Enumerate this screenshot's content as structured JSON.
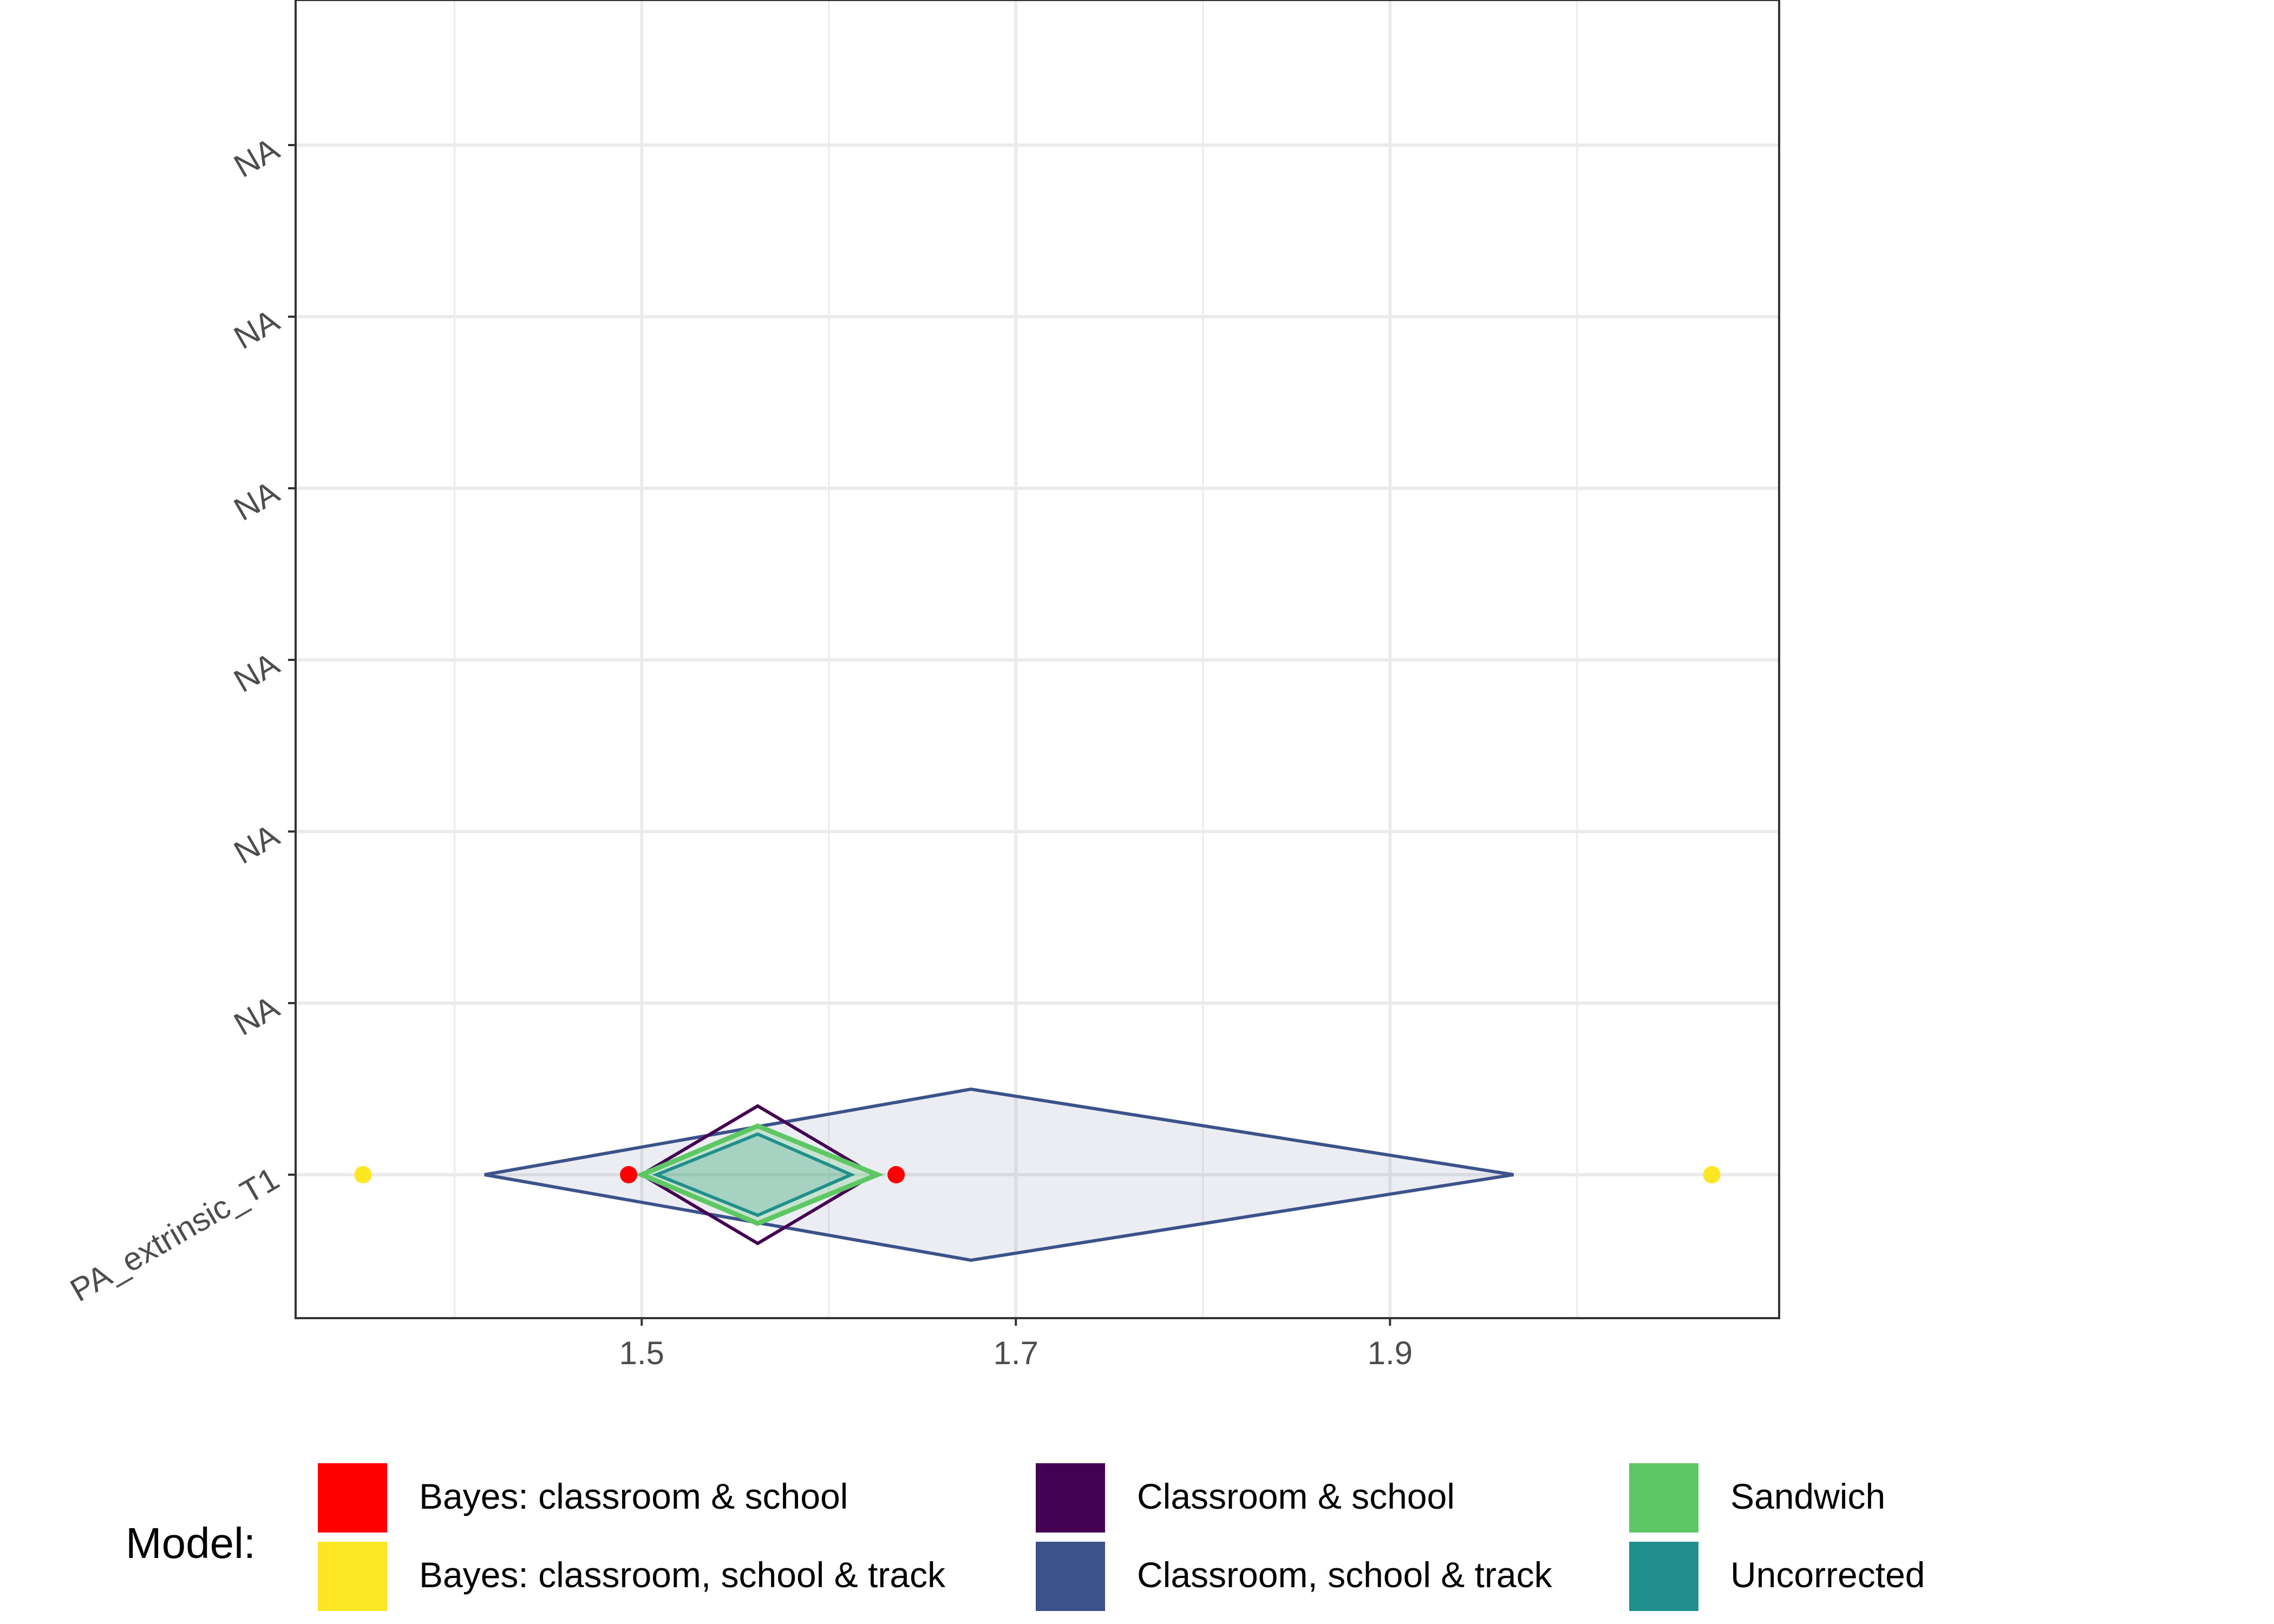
{
  "chart_data": {
    "type": "forest",
    "xlabel": "",
    "ylabel": "",
    "xlim": [
      1.315,
      2.108
    ],
    "x_ticks": [
      1.5,
      1.7,
      1.9
    ],
    "x_tick_labels": [
      "1.5",
      "1.7",
      "1.9"
    ],
    "y_tick_labels": [
      "PA_extrinsic_T1",
      "NA",
      "NA",
      "NA",
      "NA",
      "NA",
      "NA"
    ],
    "grid": true,
    "legend": {
      "title": "Model:",
      "position": "bottom",
      "items": [
        {
          "label": "Bayes: classroom & school",
          "color": "#FF0000"
        },
        {
          "label": "Bayes: classroom, school & track",
          "color": "#FDE725"
        },
        {
          "label": "Classroom & school",
          "color": "#440154"
        },
        {
          "label": "Classroom, school & track",
          "color": "#3B528B"
        },
        {
          "label": "Sandwich",
          "color": "#5DC863"
        },
        {
          "label": "Uncorrected",
          "color": "#21908C"
        }
      ]
    },
    "diamonds": [
      {
        "series": "Classroom, school & track",
        "row": 0,
        "lower": 1.416,
        "estimate": 1.676,
        "upper": 1.966,
        "color": "#3B528B"
      },
      {
        "series": "Classroom & school",
        "row": 0,
        "lower": 1.5,
        "estimate": 1.562,
        "upper": 1.624,
        "color": "#440154"
      },
      {
        "series": "Sandwich",
        "row": 0,
        "lower": 1.5,
        "estimate": 1.562,
        "upper": 1.626,
        "color": "#5DC863"
      },
      {
        "series": "Uncorrected",
        "row": 0,
        "lower": 1.508,
        "estimate": 1.562,
        "upper": 1.612,
        "color": "#21908C"
      }
    ],
    "points": [
      {
        "series": "Bayes: classroom & school",
        "row": 0,
        "x": [
          1.493,
          1.636
        ],
        "color": "#FF0000"
      },
      {
        "series": "Bayes: classroom, school & track",
        "row": 0,
        "x": [
          1.351,
          2.072
        ],
        "color": "#FDE725"
      }
    ]
  }
}
